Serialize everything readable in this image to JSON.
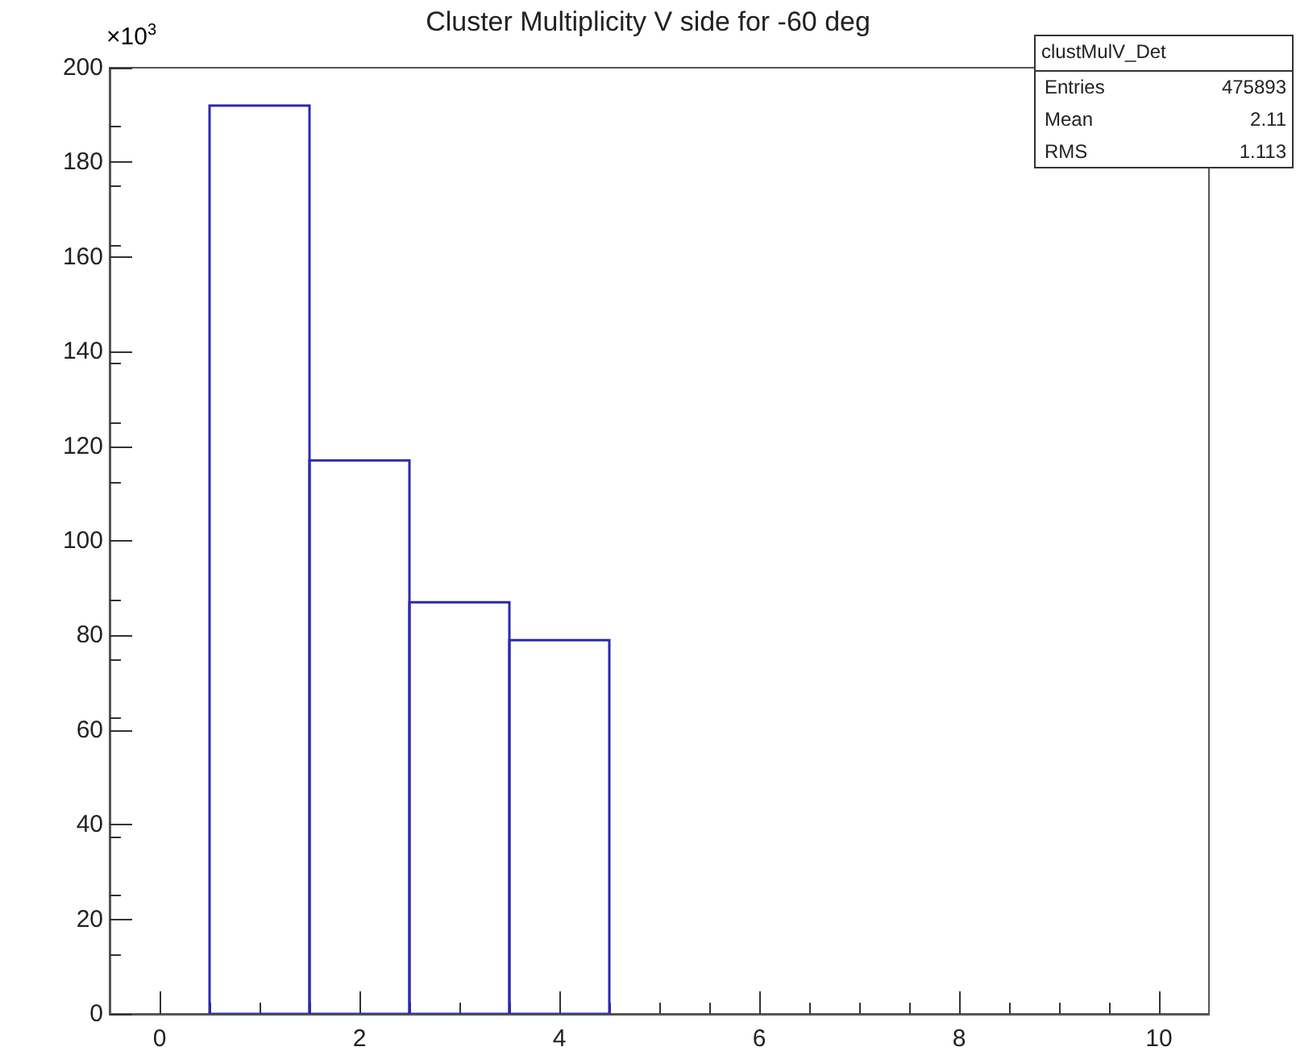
{
  "chart_data": {
    "type": "histogram",
    "title": "Cluster Multiplicity V side for -60 deg",
    "ylabel": "×10$^{3}$",
    "bins": [
      0.5,
      1.5,
      2.5,
      3.5,
      4.5
    ],
    "values": [
      192,
      117,
      87,
      79
    ],
    "color": "#2a2ab0",
    "xlim": [
      -0.5,
      10.5
    ],
    "xticks": [
      0,
      2,
      4,
      6,
      8,
      10
    ],
    "ylim": [
      0,
      200
    ],
    "yticks": [
      0,
      20,
      40,
      60,
      80,
      100,
      120,
      140,
      160,
      180,
      200
    ],
    "grid": false,
    "annotations": [
      "clustMulV_Det",
      "Entries",
      "475893",
      "Mean",
      "2.11",
      "RMS",
      "1.113"
    ]
  }
}
